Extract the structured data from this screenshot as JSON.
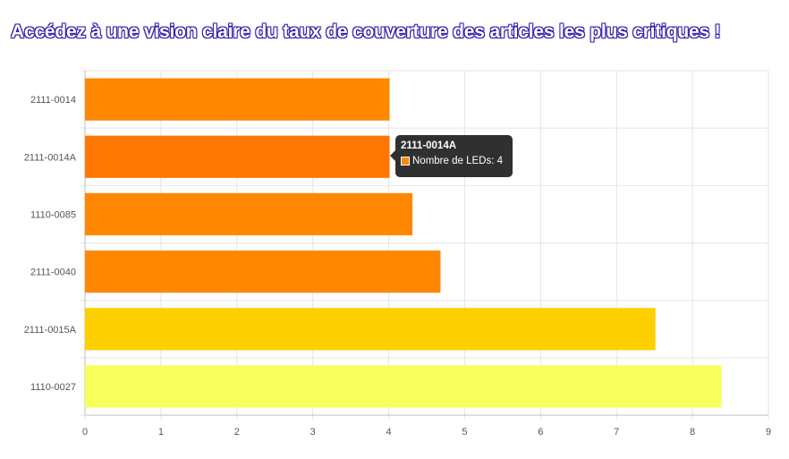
{
  "page": {
    "title": "Accédez à une vision claire du taux de couverture des articles les plus critiques !"
  },
  "chart_data": {
    "type": "bar",
    "orientation": "horizontal",
    "categories": [
      "2111-0014",
      "2111-0014A",
      "1110-0085",
      "2111-0040",
      "2111-0015A",
      "1110-0027"
    ],
    "series": [
      {
        "name": "Nombre de LEDs",
        "values": [
          4,
          4,
          4.3,
          4.67,
          7.5,
          8.37
        ],
        "colors": [
          "#ff8800",
          "#ff7700",
          "#ff8800",
          "#ff8800",
          "#ffd000",
          "#f7ff5c"
        ]
      }
    ],
    "xlim": [
      0,
      9
    ],
    "xticks": [
      0,
      1,
      2,
      3,
      4,
      5,
      6,
      7,
      8,
      9
    ],
    "grid": true,
    "tooltip": {
      "title": "2111-0014A",
      "label": "Nombre de LEDs: 4",
      "swatch_color": "#ff8800"
    }
  }
}
